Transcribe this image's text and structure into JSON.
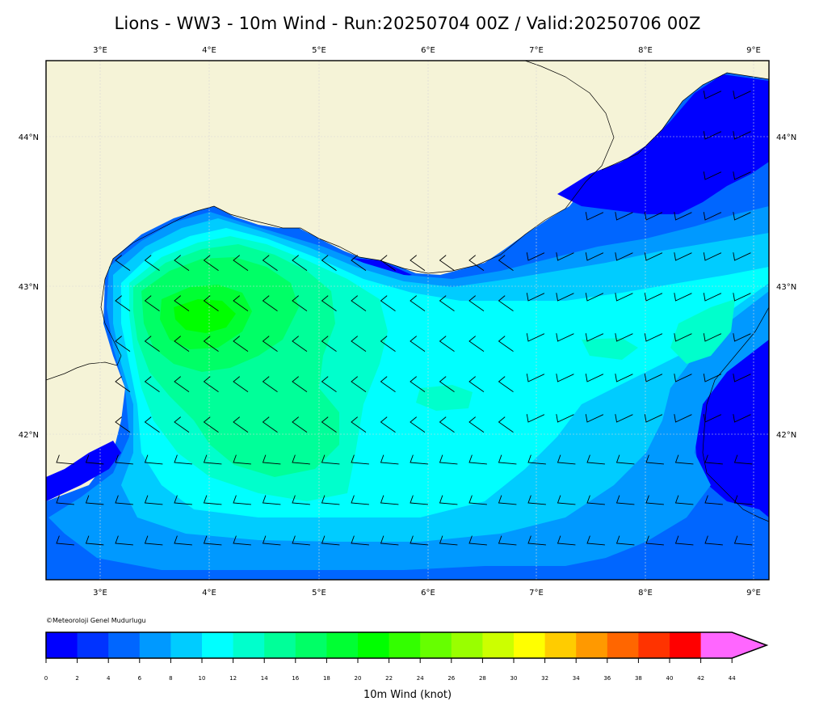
{
  "title": "Lions - WW3 - 10m Wind - Run:20250704 00Z / Valid:20250706 00Z",
  "map": {
    "lon_labels": [
      "3°E",
      "4°E",
      "5°E",
      "6°E",
      "7°E",
      "8°E",
      "9°E"
    ],
    "lat_labels": [
      "44°N",
      "43°N",
      "42°N"
    ],
    "colors": {
      "land": "#f5f3d7",
      "frame": "#000000",
      "grid": "#cfcfcf"
    }
  },
  "copyright": "©Meteoroloji Genel Mudurlugu",
  "colorbar": {
    "title": "10m Wind (knot)",
    "ticks": [
      "0",
      "2",
      "4",
      "6",
      "8",
      "10",
      "12",
      "14",
      "16",
      "18",
      "20",
      "22",
      "24",
      "26",
      "28",
      "30",
      "32",
      "34",
      "36",
      "38",
      "40",
      "42",
      "44"
    ],
    "colors": [
      "#0000ff",
      "#0033ff",
      "#0066ff",
      "#0099ff",
      "#00ccff",
      "#00ffff",
      "#00ffcc",
      "#00ff99",
      "#00ff66",
      "#00ff33",
      "#00ff00",
      "#33ff00",
      "#66ff00",
      "#99ff00",
      "#ccff00",
      "#ffff00",
      "#ffcc00",
      "#ff9900",
      "#ff6600",
      "#ff3300",
      "#ff0000",
      "#ff66ff"
    ]
  }
}
